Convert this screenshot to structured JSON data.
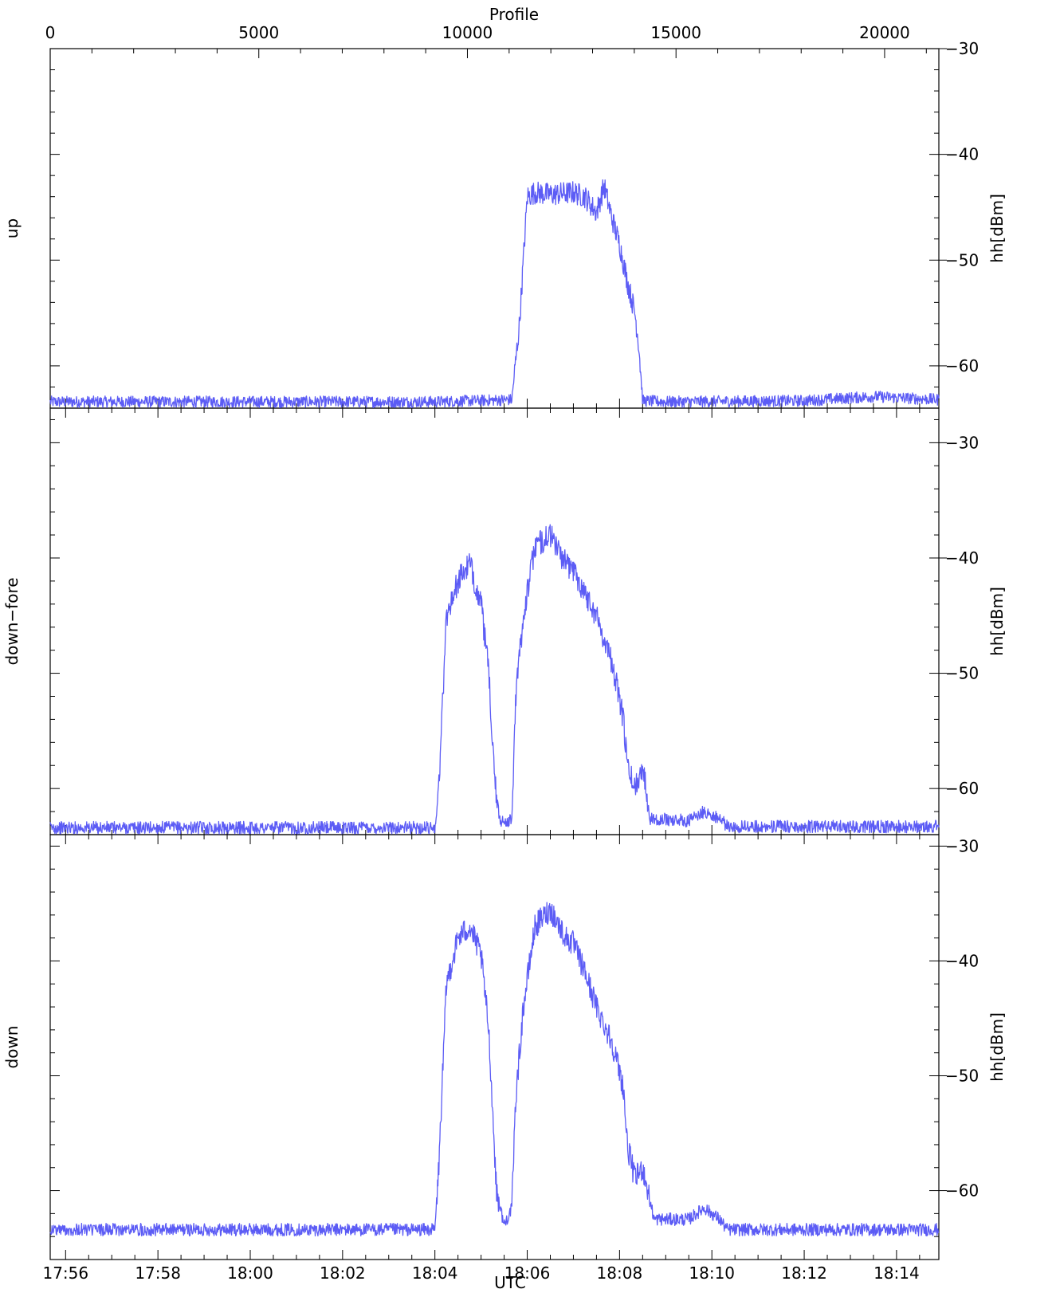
{
  "chart_data": {
    "type": "line",
    "top_axis": {
      "label": "Profile",
      "ticks": [
        0,
        5000,
        10000,
        15000,
        20000
      ],
      "tick_labels": [
        "0",
        "5000",
        "10000",
        "15000",
        "20000"
      ],
      "range": [
        0,
        21300
      ]
    },
    "bottom_axis": {
      "label": "UTC",
      "ticks": [
        "17:56",
        "17:58",
        "18:00",
        "18:02",
        "18:04",
        "18:06",
        "18:08",
        "18:10",
        "18:12",
        "18:14"
      ],
      "range": [
        "17:55:40",
        "18:14:55"
      ]
    },
    "line_color": "#5c5cf5",
    "panels": [
      {
        "name": "up",
        "left_label": "up",
        "right_label": "hh[dBm]",
        "ylim": [
          -64,
          -30
        ],
        "yticks": [
          -30,
          -40,
          -50,
          -60
        ],
        "ytick_labels": [
          "−30",
          "−40",
          "−50",
          "−60"
        ],
        "x": [
          "17:55:40",
          "18:04:00",
          "18:05:40",
          "18:05:50",
          "18:06:00",
          "18:06:10",
          "18:06:30",
          "18:07:00",
          "18:07:15",
          "18:07:30",
          "18:07:40",
          "18:07:50",
          "18:08:00",
          "18:08:10",
          "18:08:20",
          "18:08:25",
          "18:08:30",
          "18:09:00",
          "18:12:00",
          "18:13:30",
          "18:14:55"
        ],
        "values": [
          -63.4,
          -63.4,
          -63.2,
          -56,
          -44,
          -43.6,
          -43.8,
          -43.6,
          -44,
          -45.5,
          -43,
          -46,
          -48.5,
          -52,
          -55,
          -58,
          -63.3,
          -63.4,
          -63.3,
          -62.9,
          -63.2
        ]
      },
      {
        "name": "down-fore",
        "left_label": "down−fore",
        "right_label": "hh[dBm]",
        "ylim": [
          -64,
          -27
        ],
        "yticks": [
          -30,
          -40,
          -50,
          -60
        ],
        "ytick_labels": [
          "−30",
          "−40",
          "−50",
          "−60"
        ],
        "x": [
          "17:55:40",
          "18:04:00",
          "18:04:05",
          "18:04:15",
          "18:04:30",
          "18:04:45",
          "18:05:00",
          "18:05:10",
          "18:05:15",
          "18:05:20",
          "18:05:25",
          "18:05:40",
          "18:05:45",
          "18:05:55",
          "18:06:10",
          "18:06:30",
          "18:06:50",
          "18:07:00",
          "18:07:15",
          "18:07:30",
          "18:07:50",
          "18:08:05",
          "18:08:10",
          "18:08:20",
          "18:08:30",
          "18:08:40",
          "18:09:30",
          "18:09:50",
          "18:10:10",
          "18:10:20",
          "18:12:00",
          "18:14:55"
        ],
        "values": [
          -63.4,
          -63.4,
          -60,
          -45,
          -42,
          -40.5,
          -44,
          -50,
          -56,
          -61,
          -62.8,
          -62.8,
          -52,
          -45,
          -39,
          -38,
          -40.5,
          -41,
          -43,
          -45,
          -49,
          -54,
          -58,
          -60,
          -58,
          -62.6,
          -62.8,
          -62,
          -62.6,
          -63.3,
          -63.3,
          -63.3
        ]
      },
      {
        "name": "down",
        "left_label": "down",
        "right_label": "hh[dBm]",
        "ylim": [
          -66,
          -29
        ],
        "yticks": [
          -30,
          -40,
          -50,
          -60
        ],
        "ytick_labels": [
          "−30",
          "−40",
          "−50",
          "−60"
        ],
        "x": [
          "17:55:40",
          "18:04:00",
          "18:04:05",
          "18:04:15",
          "18:04:30",
          "18:04:45",
          "18:05:00",
          "18:05:10",
          "18:05:15",
          "18:05:20",
          "18:05:30",
          "18:05:40",
          "18:05:45",
          "18:05:55",
          "18:06:10",
          "18:06:30",
          "18:06:50",
          "18:07:00",
          "18:07:15",
          "18:07:30",
          "18:07:50",
          "18:08:05",
          "18:08:10",
          "18:08:20",
          "18:08:30",
          "18:08:45",
          "18:09:30",
          "18:09:50",
          "18:10:10",
          "18:10:20",
          "18:12:00",
          "18:14:55"
        ],
        "values": [
          -63.4,
          -63.4,
          -58,
          -42,
          -38,
          -37,
          -39.5,
          -46,
          -53,
          -60,
          -63,
          -61.5,
          -52,
          -44,
          -37,
          -35.5,
          -38,
          -38.5,
          -41,
          -44,
          -47,
          -51,
          -56,
          -59,
          -58,
          -62.5,
          -62.5,
          -61.5,
          -62.5,
          -63.4,
          -63.4,
          -63.4
        ]
      }
    ]
  }
}
